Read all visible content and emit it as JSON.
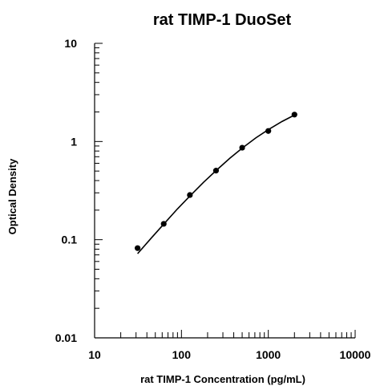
{
  "chart_data": {
    "type": "scatter",
    "title": "rat TIMP-1 DuoSet",
    "xlabel": "rat TIMP-1 Concentration (pg/mL)",
    "ylabel": "Optical Density",
    "x_scale": "log",
    "y_scale": "log",
    "xlim": [
      10,
      10000
    ],
    "ylim": [
      0.01,
      10
    ],
    "x_ticks": [
      "10",
      "100",
      "1000",
      "10000"
    ],
    "y_ticks": [
      "10",
      "1",
      "0.1",
      "0.01"
    ],
    "grid": false,
    "legend": "none",
    "series": [
      {
        "x": [
          31.25,
          62.5,
          125,
          250,
          500,
          1000,
          2000
        ],
        "y": [
          0.082,
          0.145,
          0.285,
          0.505,
          0.865,
          1.28,
          1.88
        ]
      }
    ],
    "fit_curve": {
      "x": [
        31.25,
        45,
        62.5,
        90,
        125,
        180,
        250,
        360,
        500,
        720,
        1000,
        1440,
        2000
      ],
      "y": [
        0.072,
        0.104,
        0.144,
        0.206,
        0.278,
        0.385,
        0.505,
        0.675,
        0.855,
        1.09,
        1.32,
        1.6,
        1.86
      ]
    },
    "colors": {
      "axis": "#000000",
      "points": "#000000",
      "curve": "#000000"
    }
  }
}
